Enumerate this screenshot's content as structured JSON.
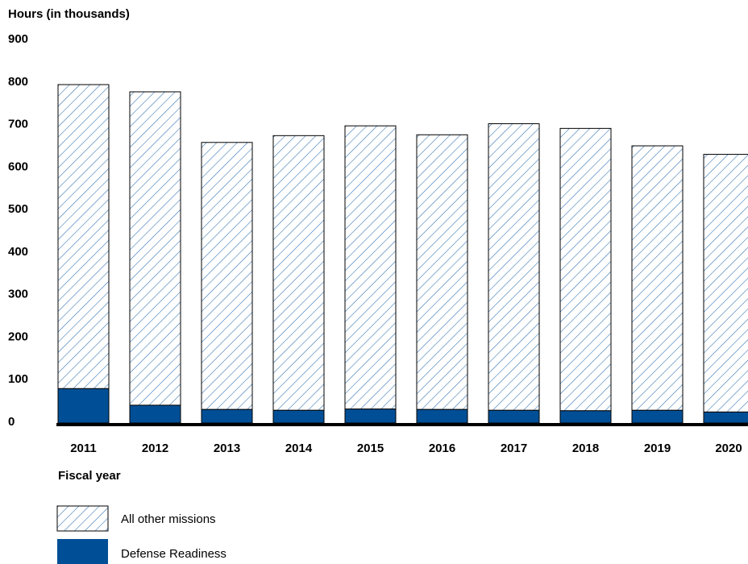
{
  "chart_data": {
    "type": "bar",
    "stacked": true,
    "ylabel": "Hours (in thousands)",
    "xlabel": "Fiscal year",
    "ylim": [
      0,
      900
    ],
    "yticks": [
      0,
      100,
      200,
      300,
      400,
      500,
      600,
      700,
      800,
      900
    ],
    "categories": [
      "2011",
      "2012",
      "2013",
      "2014",
      "2015",
      "2016",
      "2017",
      "2018",
      "2019",
      "2020"
    ],
    "series": [
      {
        "name": "Defense Readiness",
        "color": "#004f96",
        "fill": "solid",
        "values": [
          77,
          38,
          28,
          26,
          29,
          28,
          26,
          25,
          26,
          22
        ]
      },
      {
        "name": "All other missions",
        "color": "#2a6db0",
        "fill": "hatched",
        "values": [
          715,
          737,
          628,
          646,
          666,
          646,
          674,
          664,
          622,
          606
        ]
      }
    ],
    "legend": {
      "position": "bottom-left",
      "order": [
        "All other missions",
        "Defense Readiness"
      ]
    }
  }
}
